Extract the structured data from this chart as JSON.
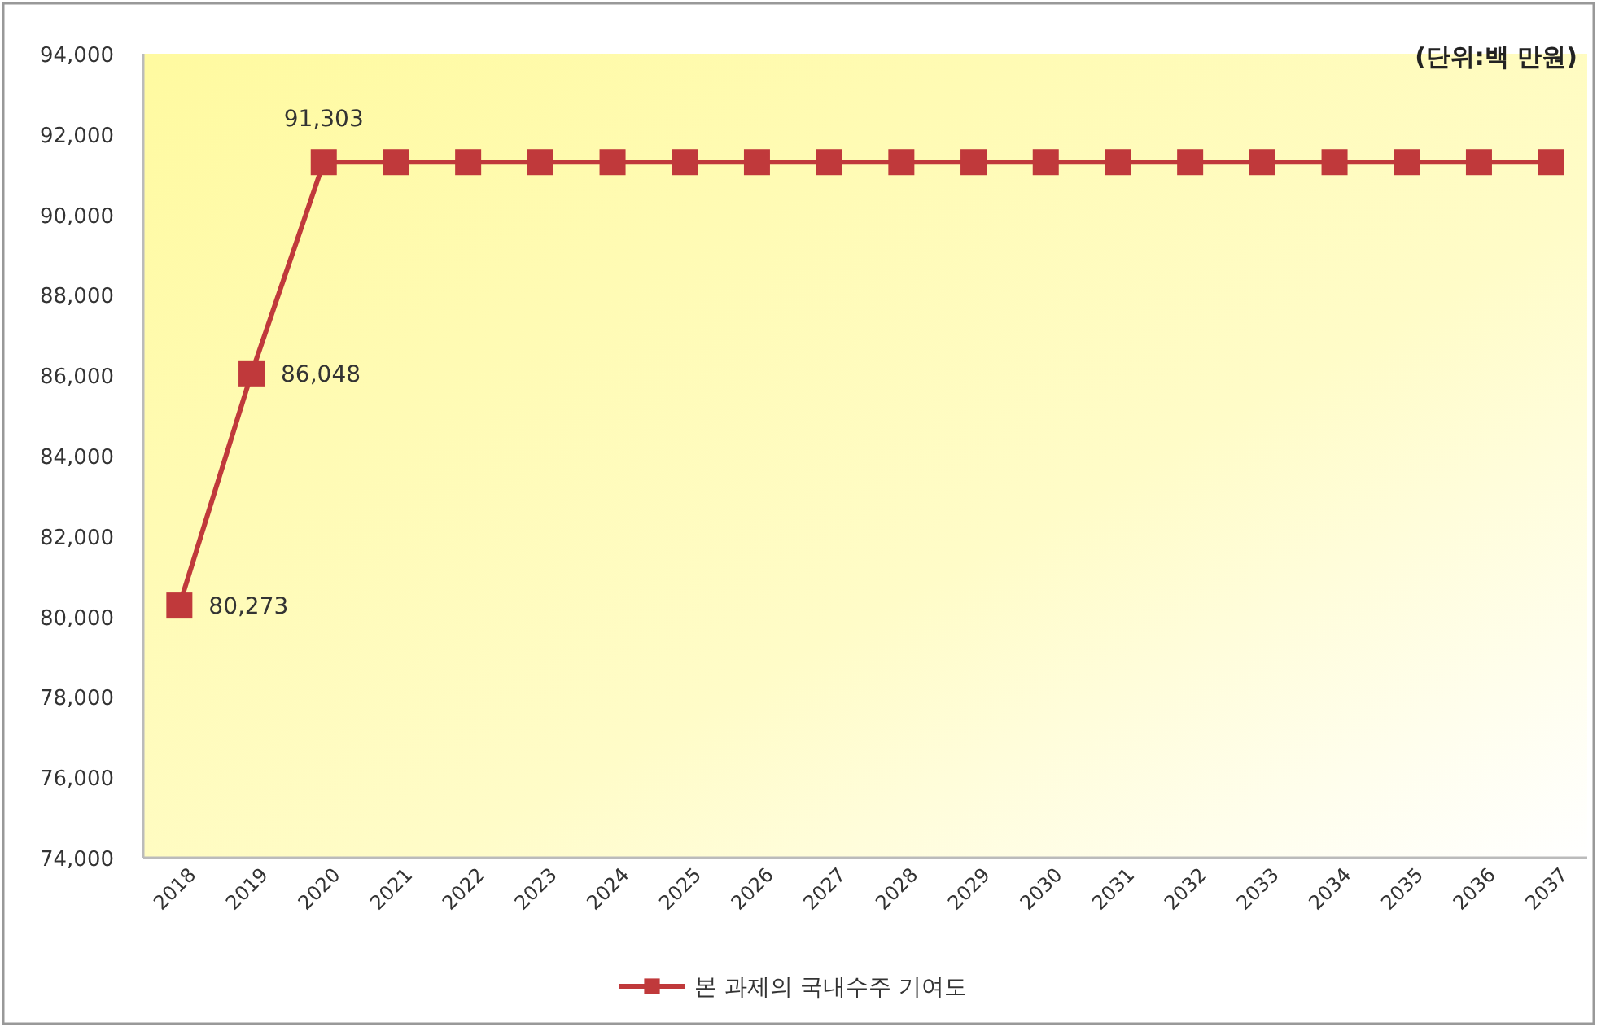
{
  "chart_data": {
    "type": "line",
    "categories": [
      "2018",
      "2019",
      "2020",
      "2021",
      "2022",
      "2023",
      "2024",
      "2025",
      "2026",
      "2027",
      "2028",
      "2029",
      "2030",
      "2031",
      "2032",
      "2033",
      "2034",
      "2035",
      "2036",
      "2037"
    ],
    "series": [
      {
        "name": "본 과제의 국내수주 기여도",
        "color": "#c0393b",
        "values": [
          80273,
          86048,
          91303,
          91303,
          91303,
          91303,
          91303,
          91303,
          91303,
          91303,
          91303,
          91303,
          91303,
          91303,
          91303,
          91303,
          91303,
          91303,
          91303,
          91303
        ],
        "value_labels": [
          "80,273",
          "86,048",
          "91,303",
          null,
          null,
          null,
          null,
          null,
          null,
          null,
          null,
          null,
          null,
          null,
          null,
          null,
          null,
          null,
          null,
          null
        ]
      }
    ],
    "ylim": [
      74000,
      94000
    ],
    "yticks": [
      {
        "value": 74000,
        "label": "74,000"
      },
      {
        "value": 76000,
        "label": "76,000"
      },
      {
        "value": 78000,
        "label": "78,000"
      },
      {
        "value": 80000,
        "label": "80,000"
      },
      {
        "value": 82000,
        "label": "82,000"
      },
      {
        "value": 84000,
        "label": "84,000"
      },
      {
        "value": 86000,
        "label": "86,000"
      },
      {
        "value": 88000,
        "label": "88,000"
      },
      {
        "value": 90000,
        "label": "90,000"
      },
      {
        "value": 92000,
        "label": "92,000"
      },
      {
        "value": 94000,
        "label": "94,000"
      }
    ],
    "annotations": [
      "(단위:백 만원)"
    ],
    "marker": "square",
    "line_style": "solid",
    "grid": false,
    "legend": "bottom"
  }
}
